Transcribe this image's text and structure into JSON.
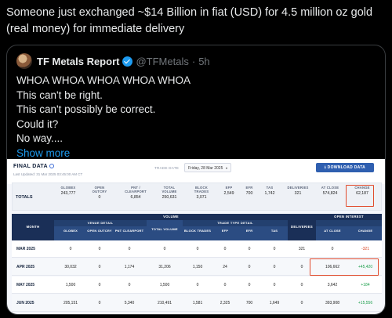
{
  "post": {
    "text": "Someone just exchanged ~$14 Billion in fiat (USD) for 4.5 million oz gold (real money) for immediate delivery"
  },
  "quote": {
    "name": "TF Metals Report",
    "handle": "@TFMetals",
    "separator": "·",
    "time": "5h",
    "lines": [
      "WHOA WHOA WHOA WHOA WHOA",
      "This can't be right.",
      "This can't possibly be correct.",
      "Could it?",
      "No way...."
    ],
    "show_more": "Show more"
  },
  "screenshot": {
    "title": "FINAL DATA",
    "updated": "Last Updated: 31 Mar 2025 03:45:00 AM CT",
    "trade_date_label": "TRADE DATE",
    "trade_date_value": "Friday, 28 Mar 2025",
    "download_label": "DOWNLOAD DATA",
    "totals": {
      "label": "TOTALS",
      "columns": [
        {
          "h": "GLOBEX",
          "v": "243,777"
        },
        {
          "h": "OPEN OUTCRY",
          "v": "0"
        },
        {
          "h": "PNT / CLEARPORT",
          "v": "6,854"
        },
        {
          "h": "TOTAL VOLUME",
          "v": "250,631"
        },
        {
          "h": "BLOCK TRADES",
          "v": "3,071"
        },
        {
          "h": "EFP",
          "v": "2,549"
        },
        {
          "h": "EFR",
          "v": "700"
        },
        {
          "h": "TAS",
          "v": "1,742"
        },
        {
          "h": "DELIVERIES",
          "v": "321"
        },
        {
          "h": "AT CLOSE",
          "v": "574,824"
        },
        {
          "h": "CHANGE",
          "v": "62,187"
        }
      ]
    },
    "table": {
      "month_header": "MONTH",
      "volume_header": "VOLUME",
      "venue_header": "VENUE DETAIL",
      "total_volume_header": "TOTAL VOLUME",
      "trade_type_header": "TRADE TYPE DETAIL",
      "deliveries_header": "DELIVERIES",
      "open_interest_header": "OPEN INTEREST",
      "sub_headers": [
        "GLOBEX",
        "OPEN OUTCRY",
        "PNT CLEARPORT",
        "BLOCK TRADES",
        "EFP",
        "EFR",
        "TAS",
        "AT CLOSE",
        "CHANGE"
      ],
      "rows": [
        {
          "month": "MAR 2025",
          "globex": "0",
          "outcry": "0",
          "pnt": "0",
          "total": "0",
          "block": "0",
          "efp": "0",
          "efr": "0",
          "tas": "0",
          "deliv": "321",
          "close": "0",
          "change": "-321",
          "sign": "neg"
        },
        {
          "month": "APR 2025",
          "globex": "30,032",
          "outcry": "0",
          "pnt": "1,174",
          "total": "31,206",
          "block": "1,150",
          "efp": "24",
          "efr": "0",
          "tas": "0",
          "deliv": "0",
          "close": "106,662",
          "change": "+45,420",
          "sign": "pos"
        },
        {
          "month": "MAY 2025",
          "globex": "1,500",
          "outcry": "0",
          "pnt": "0",
          "total": "1,500",
          "block": "0",
          "efp": "0",
          "efr": "0",
          "tas": "0",
          "deliv": "0",
          "close": "3,642",
          "change": "+184",
          "sign": "pos"
        },
        {
          "month": "JUN 2025",
          "globex": "205,151",
          "outcry": "0",
          "pnt": "5,340",
          "total": "210,491",
          "block": "1,581",
          "efp": "2,325",
          "efr": "700",
          "tas": "1,649",
          "deliv": "0",
          "close": "393,908",
          "change": "+15,556",
          "sign": "pos"
        }
      ]
    },
    "highlight_color": "#e14b2c"
  }
}
